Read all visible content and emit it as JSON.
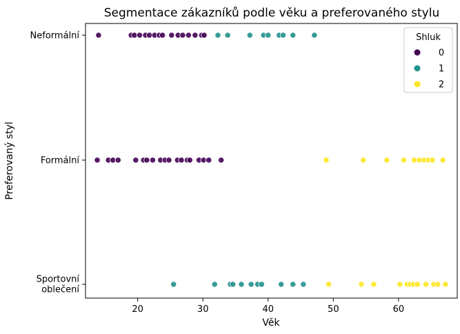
{
  "chart_data": {
    "type": "scatter",
    "title": "Segmentace zákazníků podle věku a preferovaného stylu",
    "xlabel": "Věk",
    "ylabel": "Preferovaný styl",
    "xlim": [
      12,
      69
    ],
    "x_ticks": [
      20,
      30,
      40,
      50,
      60
    ],
    "categories": [
      "Sportovní\noblečení",
      "Formální",
      "Neformální"
    ],
    "grid": false,
    "legend": {
      "title": "Shluk",
      "placement": "top-right"
    },
    "series": [
      {
        "name": "0",
        "color": "#440154",
        "points": [
          {
            "x": 14.0,
            "y": "Neformální"
          },
          {
            "x": 19.0,
            "y": "Neformální"
          },
          {
            "x": 19.5,
            "y": "Neformální"
          },
          {
            "x": 20.3,
            "y": "Neformální"
          },
          {
            "x": 21.2,
            "y": "Neformální"
          },
          {
            "x": 21.8,
            "y": "Neformální"
          },
          {
            "x": 22.6,
            "y": "Neformální"
          },
          {
            "x": 23.3,
            "y": "Neformální"
          },
          {
            "x": 23.8,
            "y": "Neformální"
          },
          {
            "x": 25.2,
            "y": "Neformální"
          },
          {
            "x": 26.2,
            "y": "Neformální"
          },
          {
            "x": 26.9,
            "y": "Neformální"
          },
          {
            "x": 27.8,
            "y": "Neformální"
          },
          {
            "x": 28.8,
            "y": "Neformální"
          },
          {
            "x": 29.8,
            "y": "Neformální"
          },
          {
            "x": 30.2,
            "y": "Neformální"
          },
          {
            "x": 13.8,
            "y": "Formální"
          },
          {
            "x": 15.5,
            "y": "Formální"
          },
          {
            "x": 16.2,
            "y": "Formální"
          },
          {
            "x": 17.0,
            "y": "Formální"
          },
          {
            "x": 19.7,
            "y": "Formální"
          },
          {
            "x": 20.9,
            "y": "Formální"
          },
          {
            "x": 21.4,
            "y": "Formální"
          },
          {
            "x": 22.3,
            "y": "Formální"
          },
          {
            "x": 23.5,
            "y": "Formální"
          },
          {
            "x": 24.2,
            "y": "Formální"
          },
          {
            "x": 24.8,
            "y": "Formální"
          },
          {
            "x": 26.1,
            "y": "Formální"
          },
          {
            "x": 26.7,
            "y": "Formální"
          },
          {
            "x": 27.6,
            "y": "Formální"
          },
          {
            "x": 28.0,
            "y": "Formální"
          },
          {
            "x": 29.4,
            "y": "Formální"
          },
          {
            "x": 30.1,
            "y": "Formální"
          },
          {
            "x": 30.9,
            "y": "Formální"
          },
          {
            "x": 32.8,
            "y": "Formální"
          }
        ]
      },
      {
        "name": "1",
        "color": "#21918c",
        "points": [
          {
            "x": 32.3,
            "y": "Neformální"
          },
          {
            "x": 33.8,
            "y": "Neformální"
          },
          {
            "x": 37.2,
            "y": "Neformální"
          },
          {
            "x": 39.3,
            "y": "Neformální"
          },
          {
            "x": 40.0,
            "y": "Neformální"
          },
          {
            "x": 41.7,
            "y": "Neformální"
          },
          {
            "x": 42.3,
            "y": "Neformální"
          },
          {
            "x": 43.8,
            "y": "Neformální"
          },
          {
            "x": 47.1,
            "y": "Neformální"
          },
          {
            "x": 25.5,
            "y": "Sportovní\noblečení"
          },
          {
            "x": 31.8,
            "y": "Sportovní\noblečení"
          },
          {
            "x": 34.2,
            "y": "Sportovní\noblečení"
          },
          {
            "x": 34.6,
            "y": "Sportovní\noblečení"
          },
          {
            "x": 35.9,
            "y": "Sportovní\noblečení"
          },
          {
            "x": 37.4,
            "y": "Sportovní\noblečení"
          },
          {
            "x": 38.4,
            "y": "Sportovní\noblečení"
          },
          {
            "x": 39.0,
            "y": "Sportovní\noblečení"
          },
          {
            "x": 42.0,
            "y": "Sportovní\noblečení"
          },
          {
            "x": 43.8,
            "y": "Sportovní\noblečení"
          },
          {
            "x": 45.4,
            "y": "Sportovní\noblečení"
          }
        ]
      },
      {
        "name": "2",
        "color": "#fde725",
        "points": [
          {
            "x": 48.9,
            "y": "Formální"
          },
          {
            "x": 54.6,
            "y": "Formální"
          },
          {
            "x": 58.2,
            "y": "Formální"
          },
          {
            "x": 60.8,
            "y": "Formální"
          },
          {
            "x": 62.4,
            "y": "Formální"
          },
          {
            "x": 63.2,
            "y": "Formální"
          },
          {
            "x": 63.9,
            "y": "Formální"
          },
          {
            "x": 64.6,
            "y": "Formální"
          },
          {
            "x": 65.2,
            "y": "Formální"
          },
          {
            "x": 66.8,
            "y": "Formální"
          },
          {
            "x": 49.3,
            "y": "Sportovní\noblečení"
          },
          {
            "x": 54.3,
            "y": "Sportovní\noblečení"
          },
          {
            "x": 56.2,
            "y": "Sportovní\noblečení"
          },
          {
            "x": 60.2,
            "y": "Sportovní\noblečení"
          },
          {
            "x": 61.3,
            "y": "Sportovní\noblečení"
          },
          {
            "x": 61.8,
            "y": "Sportovní\noblečení"
          },
          {
            "x": 62.3,
            "y": "Sportovní\noblečení"
          },
          {
            "x": 62.9,
            "y": "Sportovní\noblečení"
          },
          {
            "x": 64.2,
            "y": "Sportovní\noblečení"
          },
          {
            "x": 65.4,
            "y": "Sportovní\noblečení"
          },
          {
            "x": 66.0,
            "y": "Sportovní\noblečení"
          },
          {
            "x": 67.2,
            "y": "Sportovní\noblečení"
          }
        ]
      }
    ]
  }
}
